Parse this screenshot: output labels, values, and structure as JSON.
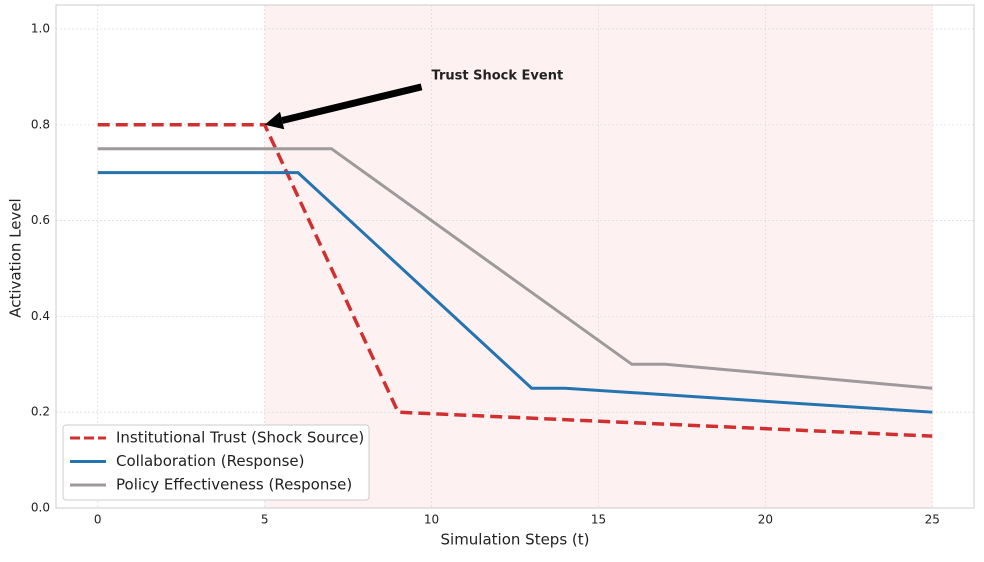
{
  "chart_data": {
    "type": "line",
    "xlabel": "Simulation Steps (t)",
    "ylabel": "Activation Level",
    "xlim": [
      -1.25,
      26.25
    ],
    "ylim": [
      0,
      1.05
    ],
    "xticks": [
      0,
      5,
      10,
      15,
      20,
      25
    ],
    "yticks": [
      {
        "value": 0,
        "label": "0.0"
      },
      {
        "value": 0.2,
        "label": "0.2"
      },
      {
        "value": 0.4,
        "label": "0.4"
      },
      {
        "value": 0.6,
        "label": "0.6"
      },
      {
        "value": 0.8,
        "label": "0.8"
      },
      {
        "value": 1,
        "label": "1.0"
      }
    ],
    "grid": true,
    "shaded_region": {
      "x": [
        5,
        25
      ],
      "color": "#fdf1f2"
    },
    "annotation": {
      "text": "Trust Shock Event",
      "x": 10,
      "y": 0.9,
      "arrow_x": 5,
      "arrow_y": 0.8
    },
    "legend": "lower left",
    "series": [
      {
        "name": "Institutional Trust (Shock Source)",
        "color": "#d03030",
        "dashed": true,
        "x": [
          0,
          5,
          9,
          25
        ],
        "values": [
          0.8,
          0.8,
          0.2,
          0.15
        ]
      },
      {
        "name": "Collaboration (Response)",
        "color": "#2474b0",
        "dashed": false,
        "x": [
          0,
          6,
          13,
          14,
          25
        ],
        "values": [
          0.7,
          0.7,
          0.25,
          0.25,
          0.2
        ]
      },
      {
        "name": "Policy Effectiveness (Response)",
        "color": "#9e9a9b",
        "dashed": false,
        "x": [
          0,
          7,
          16,
          17,
          25
        ],
        "values": [
          0.75,
          0.75,
          0.3,
          0.3,
          0.25
        ]
      }
    ]
  }
}
